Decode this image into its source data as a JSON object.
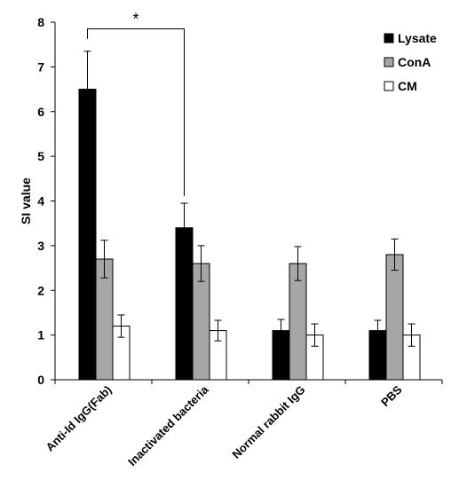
{
  "chart_data": {
    "type": "bar",
    "ylabel": "SI value",
    "xlabel": "",
    "ylim": [
      0,
      8
    ],
    "yticks": [
      0,
      1,
      2,
      3,
      4,
      5,
      6,
      7,
      8
    ],
    "categories": [
      "Anti-Id IgG(Fab)",
      "Inactivated bacteria",
      "Normal rabbit IgG",
      "PBS"
    ],
    "series": [
      {
        "name": "Lysate",
        "color": "#000000",
        "values": [
          6.5,
          3.4,
          1.1,
          1.1
        ],
        "errors": [
          0.85,
          0.55,
          0.25,
          0.23
        ]
      },
      {
        "name": "ConA",
        "color": "#a6a6a6",
        "values": [
          2.7,
          2.6,
          2.6,
          2.8
        ],
        "errors": [
          0.42,
          0.4,
          0.38,
          0.35
        ]
      },
      {
        "name": "CM",
        "color": "#ffffff",
        "values": [
          1.2,
          1.1,
          1.0,
          1.0
        ],
        "errors": [
          0.25,
          0.23,
          0.25,
          0.25
        ]
      }
    ],
    "legend_position": "top-right",
    "grid": false,
    "annotation": {
      "text": "*",
      "from_category": 0,
      "to_category": 1,
      "from_series": 0,
      "to_series": 0,
      "bracket_y": 7.85
    }
  }
}
